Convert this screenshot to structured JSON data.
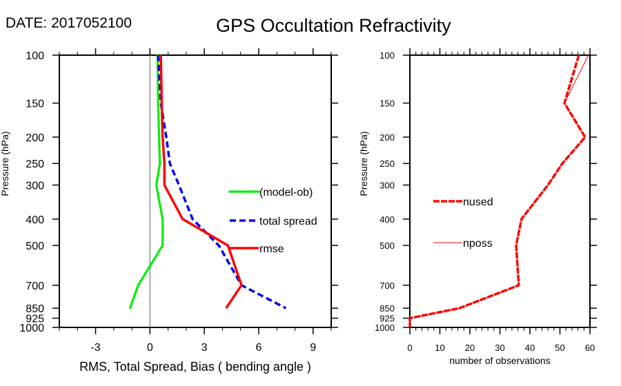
{
  "header": {
    "date_label": "DATE: 2017052100",
    "title": "GPS Occultation Refractivity"
  },
  "chart_data": [
    {
      "type": "line",
      "name": "bias-rms-spread",
      "title": "",
      "xlabel": "RMS, Total Spread, Bias ( bending angle )",
      "ylabel": "Pressure (hPa)",
      "xlim": [
        -5,
        10
      ],
      "ylim": [
        1000,
        100
      ],
      "yscale": "log",
      "x_ticks": [
        -3,
        0,
        3,
        6,
        9
      ],
      "x_tick_labels": [
        "-3",
        "0",
        "3",
        "6",
        "9"
      ],
      "y_ticks": [
        100,
        150,
        200,
        250,
        300,
        400,
        500,
        700,
        850,
        925,
        1000
      ],
      "y_tick_labels": [
        "100",
        "150",
        "200",
        "250",
        "300",
        "400",
        "500",
        "700",
        "850",
        "925",
        "1000"
      ],
      "zero_line": 0,
      "pressure": [
        100,
        150,
        200,
        250,
        300,
        400,
        500,
        700,
        850
      ],
      "series": [
        {
          "name": "(model-ob)",
          "color": "#00ee00",
          "style": "dotted",
          "values": [
            0.42,
            0.45,
            0.5,
            0.55,
            0.35,
            0.7,
            0.7,
            -0.65,
            -1.1
          ]
        },
        {
          "name": "total spread",
          "color": "#0000ee",
          "style": "dashed",
          "values": [
            0.45,
            0.6,
            0.9,
            1.1,
            1.6,
            2.35,
            3.8,
            5.05,
            7.5
          ]
        },
        {
          "name": "rmse",
          "color": "#ff0000",
          "style": "solid",
          "values": [
            0.6,
            0.65,
            0.7,
            0.8,
            0.8,
            1.8,
            4.3,
            5.05,
            4.2
          ]
        }
      ],
      "legend": [
        "(model-ob)",
        "total spread",
        "rmse"
      ],
      "legend_position": "right-middle"
    },
    {
      "type": "line",
      "name": "observation-counts",
      "title": "",
      "xlabel": "number of observations",
      "ylabel": "Pressure (hPa)",
      "xlim": [
        0,
        60
      ],
      "ylim": [
        1000,
        100
      ],
      "yscale": "log",
      "x_ticks": [
        0,
        10,
        20,
        30,
        40,
        50,
        60
      ],
      "x_tick_labels": [
        "0",
        "10",
        "20",
        "30",
        "40",
        "50",
        "60"
      ],
      "y_ticks": [
        100,
        150,
        200,
        250,
        300,
        400,
        500,
        700,
        850,
        925,
        1000
      ],
      "y_tick_labels": [
        "100",
        "150",
        "200",
        "250",
        "300",
        "400",
        "500",
        "700",
        "850",
        "925",
        "1000"
      ],
      "pressure": [
        100,
        150,
        200,
        250,
        300,
        400,
        500,
        700,
        850,
        925,
        1000
      ],
      "series": [
        {
          "name": "nused",
          "color": "#ff0000",
          "style": "dashed-thick",
          "values": [
            56.3,
            51.5,
            58.4,
            50.8,
            46,
            37.2,
            35.4,
            36.3,
            16.5,
            0,
            0
          ]
        },
        {
          "name": "nposs",
          "color": "#ff0000",
          "style": "thin",
          "values": [
            59.5,
            51.5,
            58.4,
            50.8,
            46,
            37.2,
            35.4,
            36.3,
            16.5,
            0,
            0
          ]
        }
      ],
      "legend": [
        "nused",
        "nposs"
      ],
      "legend_position": "left-middle"
    }
  ]
}
